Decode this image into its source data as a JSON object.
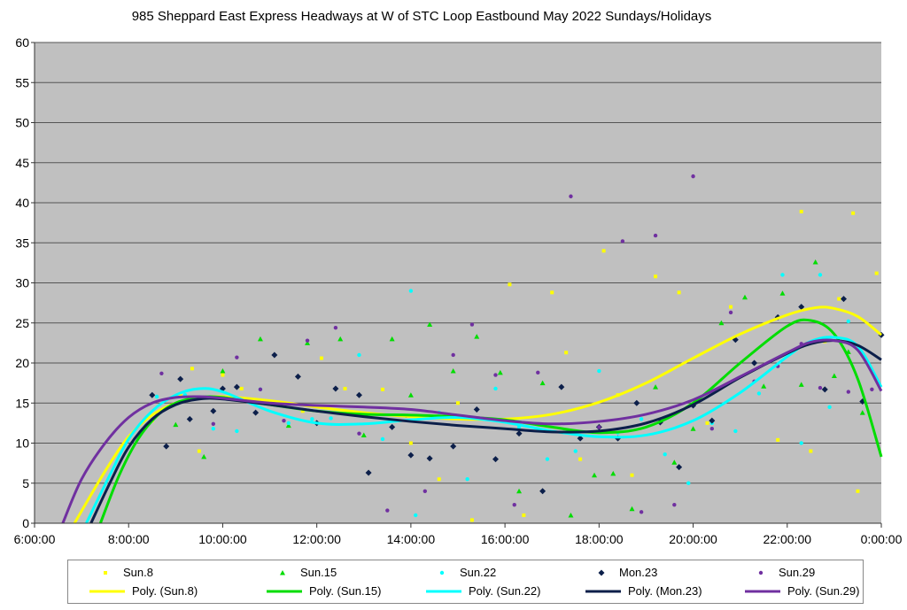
{
  "chart_data": {
    "type": "scatter",
    "title": "985 Sheppard East Express Headways at W of STC Loop Eastbound May 2022  Sundays/Holidays",
    "xlabel": "",
    "ylabel": "",
    "x_unit": "hours",
    "xlim": [
      6,
      24
    ],
    "ylim": [
      0,
      60
    ],
    "x_ticks": [
      6,
      8,
      10,
      12,
      14,
      16,
      18,
      20,
      22,
      24
    ],
    "x_tick_labels": [
      "6:00:00",
      "8:00:00",
      "10:00:00",
      "12:00:00",
      "14:00:00",
      "16:00:00",
      "18:00:00",
      "20:00:00",
      "22:00:00",
      "0:00:00"
    ],
    "y_ticks": [
      0,
      5,
      10,
      15,
      20,
      25,
      30,
      35,
      40,
      45,
      50,
      55,
      60
    ],
    "y_tick_labels": [
      "0",
      "5",
      "10",
      "15",
      "20",
      "25",
      "30",
      "35",
      "40",
      "45",
      "50",
      "55",
      "60"
    ],
    "grid": "horizontal",
    "plot_background": "#c0c0c0",
    "legend_position": "bottom",
    "series": [
      {
        "name": "Sun.8",
        "marker": "square",
        "color": "#ffff00",
        "x": [
          8.5,
          9.1,
          9.35,
          9.5,
          10.0,
          10.4,
          11.7,
          12.1,
          12.6,
          13.4,
          14.0,
          14.6,
          15.0,
          15.3,
          16.1,
          16.4,
          17.0,
          17.3,
          17.6,
          18.1,
          18.4,
          18.7,
          19.2,
          19.7,
          20.3,
          20.8,
          21.8,
          22.3,
          22.5,
          22.8,
          23.1,
          23.4,
          23.5,
          23.9
        ],
        "y": [
          12.8,
          16.0,
          19.3,
          9.0,
          18.5,
          16.8,
          14.0,
          20.6,
          16.8,
          16.7,
          10.0,
          5.5,
          15.0,
          0.4,
          29.8,
          1.0,
          28.8,
          21.3,
          8.0,
          34.0,
          16.0,
          6.0,
          30.8,
          28.8,
          12.5,
          27.0,
          10.4,
          38.9,
          9.0,
          22.7,
          28.0,
          38.7,
          4.0,
          31.2
        ]
      },
      {
        "name": "Sun.15",
        "marker": "triangle",
        "color": "#00dd00",
        "x": [
          9.0,
          9.6,
          10.0,
          10.8,
          11.4,
          11.8,
          12.5,
          13.0,
          13.6,
          14.0,
          14.4,
          14.9,
          15.4,
          15.9,
          16.3,
          16.8,
          17.4,
          17.9,
          18.3,
          18.7,
          19.2,
          19.6,
          20.0,
          20.6,
          21.1,
          21.5,
          21.9,
          22.3,
          22.6,
          23.0,
          23.3,
          23.6
        ],
        "y": [
          12.3,
          8.3,
          19.0,
          23.0,
          12.2,
          22.5,
          23.0,
          11.0,
          23.0,
          16.0,
          24.8,
          19.0,
          23.3,
          18.8,
          4.0,
          17.5,
          1.0,
          6.0,
          6.2,
          1.8,
          17.0,
          7.6,
          11.8,
          25.0,
          28.2,
          17.1,
          28.7,
          17.3,
          32.6,
          18.4,
          21.4,
          13.8
        ]
      },
      {
        "name": "Sun.22",
        "marker": "circle",
        "color": "#00ffff",
        "x": [
          8.6,
          9.2,
          9.8,
          10.3,
          10.8,
          11.4,
          11.9,
          12.3,
          12.9,
          13.4,
          14.0,
          14.1,
          14.6,
          15.2,
          15.8,
          16.3,
          16.9,
          17.5,
          18.0,
          18.4,
          18.9,
          19.4,
          19.9,
          20.4,
          20.9,
          21.4,
          21.9,
          22.3,
          22.7,
          22.9,
          23.3
        ],
        "y": [
          15.8,
          16.0,
          11.8,
          11.5,
          16.7,
          12.5,
          13.0,
          13.1,
          21.0,
          10.5,
          29.0,
          1.0,
          13.8,
          5.5,
          16.8,
          12.0,
          8.0,
          9.0,
          19.0,
          11.3,
          13.0,
          8.6,
          5.0,
          12.5,
          11.5,
          16.2,
          31.0,
          10.0,
          31.0,
          14.5,
          25.2
        ]
      },
      {
        "name": "Mon.23",
        "marker": "diamond",
        "color": "#0c1f4a",
        "x": [
          8.5,
          8.8,
          9.1,
          9.3,
          9.8,
          10.0,
          10.3,
          10.7,
          11.1,
          11.6,
          12.0,
          12.4,
          12.9,
          13.1,
          13.6,
          14.0,
          14.4,
          14.9,
          15.4,
          15.8,
          16.3,
          16.8,
          17.2,
          17.6,
          18.0,
          18.4,
          18.8,
          19.3,
          19.7,
          20.0,
          20.4,
          20.9,
          21.3,
          21.8,
          22.3,
          22.8,
          23.2,
          23.6,
          24.0
        ],
        "y": [
          16.0,
          9.6,
          18.0,
          13.0,
          14.0,
          16.8,
          17.0,
          13.8,
          21.0,
          18.3,
          12.5,
          16.8,
          16.0,
          6.3,
          12.0,
          8.5,
          8.1,
          9.6,
          14.2,
          8.0,
          11.2,
          4.0,
          17.0,
          10.6,
          12.0,
          10.6,
          15.0,
          12.6,
          7.0,
          14.7,
          12.8,
          22.9,
          20.0,
          25.7,
          27.0,
          16.7,
          28.0,
          15.2,
          23.5
        ]
      },
      {
        "name": "Sun.29",
        "marker": "circle",
        "color": "#7030a0",
        "x": [
          8.7,
          9.3,
          9.8,
          10.3,
          10.8,
          11.3,
          11.8,
          12.4,
          12.9,
          13.5,
          13.9,
          14.3,
          14.9,
          15.3,
          15.8,
          16.2,
          16.7,
          17.4,
          18.0,
          18.5,
          18.9,
          19.2,
          19.6,
          20.0,
          20.4,
          20.8,
          21.3,
          21.8,
          22.3,
          22.7,
          23.3,
          23.8
        ],
        "y": [
          18.7,
          15.5,
          12.4,
          20.7,
          16.7,
          12.8,
          22.8,
          24.4,
          11.2,
          1.6,
          13.4,
          4.0,
          21.0,
          24.8,
          18.5,
          2.3,
          18.8,
          40.8,
          12.0,
          35.2,
          1.4,
          35.9,
          2.3,
          43.3,
          11.8,
          26.3,
          17.7,
          19.6,
          22.4,
          16.9,
          16.4,
          16.7
        ]
      }
    ],
    "trendlines": [
      {
        "name": "Poly. (Sun.8)",
        "color": "#ffff00",
        "x": [
          6.85,
          7.5,
          8.0,
          8.5,
          9.0,
          9.5,
          10.0,
          11.0,
          12.0,
          13.0,
          14.0,
          15.0,
          16.0,
          17.0,
          18.0,
          19.0,
          20.0,
          21.0,
          22.0,
          22.6,
          23.0,
          23.5,
          24.0
        ],
        "y": [
          0,
          6.5,
          10.8,
          13.5,
          15.0,
          15.6,
          15.8,
          15.3,
          14.5,
          13.8,
          13.3,
          13.0,
          13.0,
          13.6,
          15.1,
          17.5,
          20.6,
          23.6,
          26.0,
          26.9,
          26.8,
          25.8,
          23.5
        ]
      },
      {
        "name": "Poly. (Sun.15)",
        "color": "#00dd00",
        "x": [
          7.4,
          7.8,
          8.2,
          8.6,
          9.0,
          9.5,
          10.0,
          11.0,
          12.0,
          13.0,
          14.0,
          15.0,
          16.0,
          17.0,
          18.0,
          19.0,
          20.0,
          21.0,
          22.0,
          22.5,
          23.0,
          23.5,
          24.0
        ],
        "y": [
          0,
          6.0,
          10.5,
          13.4,
          15.0,
          15.7,
          15.7,
          14.8,
          14.0,
          13.6,
          13.5,
          13.3,
          12.9,
          12.0,
          11.3,
          12.0,
          15.0,
          20.0,
          24.6,
          25.3,
          23.6,
          18.0,
          8.3
        ]
      },
      {
        "name": "Poly. (Sun.22)",
        "color": "#00ffff",
        "x": [
          7.1,
          7.6,
          8.0,
          8.5,
          9.0,
          9.5,
          10.0,
          11.0,
          12.0,
          13.0,
          14.0,
          15.0,
          16.0,
          17.0,
          18.0,
          19.0,
          20.0,
          21.0,
          22.0,
          22.5,
          23.0,
          23.5,
          24.0
        ],
        "y": [
          0,
          6.0,
          10.5,
          14.0,
          16.0,
          16.8,
          16.4,
          14.0,
          12.5,
          12.4,
          12.9,
          13.2,
          12.6,
          11.5,
          10.8,
          11.0,
          12.8,
          16.3,
          20.8,
          22.7,
          23.2,
          22.1,
          17.0
        ]
      },
      {
        "name": "Poly. (Mon.23)",
        "color": "#0c1f4a",
        "x": [
          7.2,
          7.6,
          8.0,
          8.5,
          9.0,
          9.5,
          10.0,
          11.0,
          12.0,
          13.0,
          14.0,
          15.0,
          16.0,
          17.0,
          18.0,
          19.0,
          20.0,
          21.0,
          22.0,
          22.5,
          23.0,
          23.5,
          24.0
        ],
        "y": [
          0,
          5.0,
          9.5,
          13.0,
          14.8,
          15.5,
          15.5,
          14.8,
          14.0,
          13.3,
          12.7,
          12.2,
          11.8,
          11.4,
          11.5,
          12.5,
          14.8,
          18.2,
          21.2,
          22.4,
          22.8,
          22.2,
          20.4
        ]
      },
      {
        "name": "Poly. (Sun.29)",
        "color": "#7030a0",
        "x": [
          6.6,
          7.0,
          7.5,
          8.0,
          8.5,
          9.0,
          9.5,
          10.0,
          11.0,
          12.0,
          13.0,
          14.0,
          15.0,
          16.0,
          17.0,
          18.0,
          19.0,
          20.0,
          21.0,
          22.0,
          22.5,
          23.0,
          23.5,
          24.0
        ],
        "y": [
          0,
          5.5,
          10.0,
          13.2,
          15.0,
          15.7,
          15.8,
          15.6,
          15.0,
          14.7,
          14.5,
          14.2,
          13.5,
          12.8,
          12.4,
          12.7,
          13.6,
          15.4,
          18.3,
          21.3,
          22.6,
          22.8,
          21.6,
          16.5
        ]
      }
    ]
  }
}
